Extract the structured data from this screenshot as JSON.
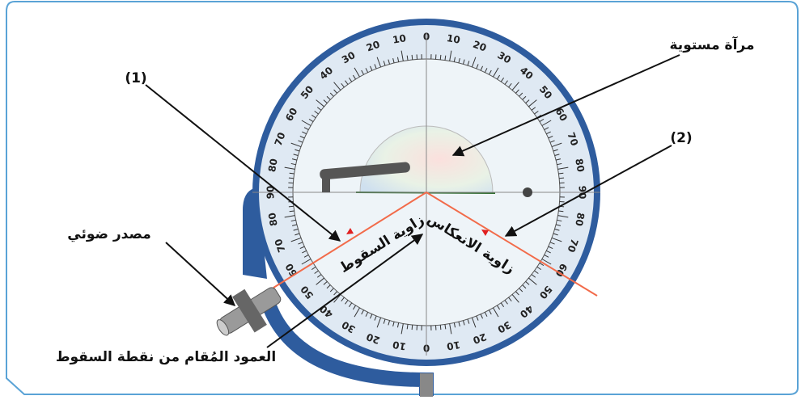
{
  "labels": {
    "ray1": "(1)",
    "ray2": "(2)",
    "mirror": "مرآة مستوية",
    "source": "مصدر ضوئي",
    "normal": "العمود المُقام من نقطة السقوط",
    "incidence_angle": "زاوية السقوط",
    "reflection_angle": "زاوية الانعكاس"
  },
  "dial": {
    "scale": [
      0,
      10,
      20,
      30,
      40,
      50,
      60,
      70,
      80,
      90
    ]
  }
}
